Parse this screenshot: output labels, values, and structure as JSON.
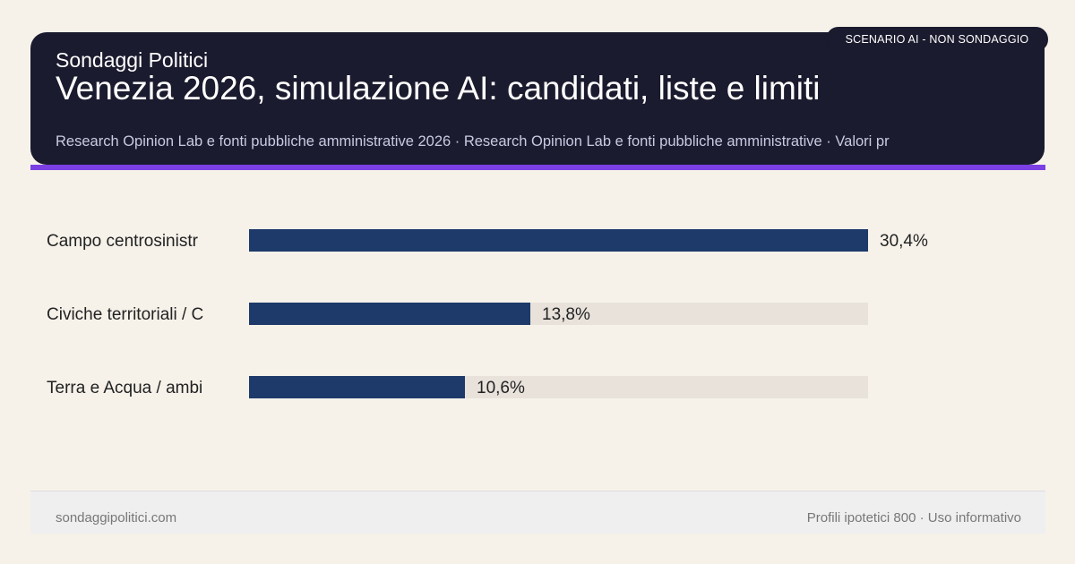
{
  "header": {
    "badge": "SCENARIO AI - NON SONDAGGIO",
    "brand": "Sondaggi Politici",
    "title": "Venezia 2026, simulazione AI: candidati, liste e limiti",
    "source": "Research Opinion Lab e fonti pubbliche amministrative 2026 · Research Opinion Lab e fonti pubbliche amministrative · Valori pr"
  },
  "colors": {
    "header_bg": "#1b1b2f",
    "accent": "#7b3fe4",
    "bar": "#1e3a6a",
    "track": "#e8e2db",
    "background": "#f6f2ea"
  },
  "chart_data": {
    "type": "bar",
    "orientation": "horizontal",
    "categories": [
      "Campo centrosinistr",
      "Civiche territoriali / C",
      "Terra e Acqua / ambi"
    ],
    "values": [
      30.4,
      13.8,
      10.6
    ],
    "value_labels": [
      "30,4%",
      "13,8%",
      "10,6%"
    ],
    "xlim": [
      0,
      30.4
    ],
    "grid": false
  },
  "footer": {
    "site": "sondaggipolitici.com",
    "note": "Profili ipotetici 800 · Uso informativo"
  }
}
